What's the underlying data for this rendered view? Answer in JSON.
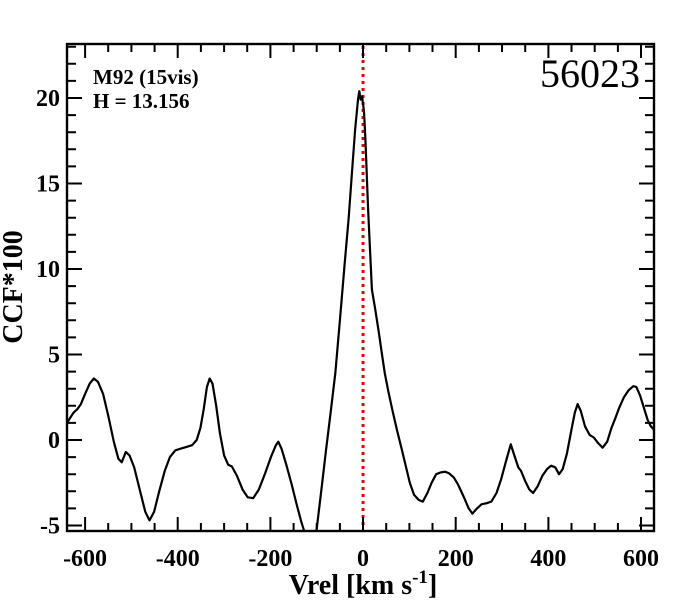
{
  "chart_data": {
    "type": "line",
    "id_label": "56023",
    "annotations": [
      "M92 (15vis)",
      "H = 13.156"
    ],
    "ylabel": "CCF*100",
    "xlabel_prefix": "Vrel [km s",
    "xlabel_sup": "-1",
    "xlabel_suffix": "]",
    "xlim": [
      -639,
      628
    ],
    "ylim": [
      -5.32,
      23.16
    ],
    "x_major_ticks": [
      -600,
      -400,
      -200,
      0,
      200,
      400,
      600
    ],
    "x_tick_labels": [
      "-600",
      "-400",
      "-200",
      "0",
      "200",
      "400",
      "600"
    ],
    "x_minor_step": 50,
    "y_major_ticks": [
      -5,
      0,
      5,
      10,
      15,
      20
    ],
    "y_tick_labels": [
      "-5",
      "0",
      "5",
      "10",
      "15",
      "20"
    ],
    "y_minor_step": 1,
    "marker_x": 0,
    "marker_color": "#ee0000",
    "line_color": "#000000",
    "grid": false,
    "legend": false,
    "series": [
      {
        "points": [
          [
            -639,
            1.0
          ],
          [
            -632,
            1.3
          ],
          [
            -625,
            1.6
          ],
          [
            -617,
            1.8
          ],
          [
            -609,
            2.1
          ],
          [
            -600,
            2.7
          ],
          [
            -590,
            3.3
          ],
          [
            -581,
            3.6
          ],
          [
            -572,
            3.4
          ],
          [
            -561,
            2.7
          ],
          [
            -549,
            1.3
          ],
          [
            -538,
            -0.1
          ],
          [
            -528,
            -1.1
          ],
          [
            -521,
            -1.3
          ],
          [
            -512,
            -0.7
          ],
          [
            -504,
            -0.9
          ],
          [
            -494,
            -1.6
          ],
          [
            -482,
            -2.9
          ],
          [
            -470,
            -4.2
          ],
          [
            -461,
            -4.7
          ],
          [
            -451,
            -4.2
          ],
          [
            -440,
            -3.0
          ],
          [
            -428,
            -1.8
          ],
          [
            -417,
            -1.0
          ],
          [
            -405,
            -0.6
          ],
          [
            -393,
            -0.5
          ],
          [
            -381,
            -0.4
          ],
          [
            -369,
            -0.3
          ],
          [
            -359,
            0.0
          ],
          [
            -351,
            0.7
          ],
          [
            -344,
            1.8
          ],
          [
            -337,
            3.1
          ],
          [
            -331,
            3.6
          ],
          [
            -325,
            3.3
          ],
          [
            -317,
            2.0
          ],
          [
            -309,
            0.4
          ],
          [
            -300,
            -0.9
          ],
          [
            -291,
            -1.45
          ],
          [
            -283,
            -1.55
          ],
          [
            -272,
            -2.1
          ],
          [
            -260,
            -2.9
          ],
          [
            -249,
            -3.35
          ],
          [
            -237,
            -3.4
          ],
          [
            -225,
            -2.9
          ],
          [
            -212,
            -2.0
          ],
          [
            -199,
            -1.0
          ],
          [
            -188,
            -0.3
          ],
          [
            -183,
            -0.1
          ],
          [
            -176,
            -0.5
          ],
          [
            -166,
            -1.4
          ],
          [
            -154,
            -2.6
          ],
          [
            -143,
            -3.8
          ],
          [
            -133,
            -4.8
          ],
          [
            -124,
            -5.6
          ],
          [
            -114,
            -6.2
          ],
          [
            -106,
            -6.3
          ],
          [
            -100,
            -5.2
          ],
          [
            -90,
            -2.9
          ],
          [
            -80,
            -0.6
          ],
          [
            -70,
            1.6
          ],
          [
            -60,
            3.9
          ],
          [
            -50,
            7.0
          ],
          [
            -40,
            10.2
          ],
          [
            -31,
            13.0
          ],
          [
            -24,
            15.6
          ],
          [
            -17,
            18.2
          ],
          [
            -11,
            19.9
          ],
          [
            -8,
            20.4
          ],
          [
            -5,
            19.9
          ],
          [
            -2,
            20.1
          ],
          [
            2,
            19.2
          ],
          [
            5,
            17.6
          ],
          [
            11,
            13.5
          ],
          [
            19,
            8.8
          ],
          [
            26,
            7.7
          ],
          [
            34,
            6.3
          ],
          [
            41,
            5.0
          ],
          [
            47,
            3.9
          ],
          [
            55,
            2.8
          ],
          [
            63,
            1.8
          ],
          [
            73,
            0.6
          ],
          [
            84,
            -0.6
          ],
          [
            93,
            -1.6
          ],
          [
            101,
            -2.5
          ],
          [
            110,
            -3.2
          ],
          [
            120,
            -3.5
          ],
          [
            129,
            -3.6
          ],
          [
            139,
            -3.1
          ],
          [
            148,
            -2.5
          ],
          [
            158,
            -2.0
          ],
          [
            167,
            -1.9
          ],
          [
            177,
            -1.85
          ],
          [
            186,
            -1.95
          ],
          [
            196,
            -2.2
          ],
          [
            205,
            -2.6
          ],
          [
            217,
            -3.3
          ],
          [
            228,
            -4.0
          ],
          [
            236,
            -4.3
          ],
          [
            246,
            -4.0
          ],
          [
            256,
            -3.75
          ],
          [
            266,
            -3.7
          ],
          [
            277,
            -3.6
          ],
          [
            288,
            -3.1
          ],
          [
            298,
            -2.3
          ],
          [
            308,
            -1.3
          ],
          [
            313,
            -0.8
          ],
          [
            319,
            -0.25
          ],
          [
            324,
            -0.7
          ],
          [
            335,
            -1.6
          ],
          [
            341,
            -1.8
          ],
          [
            350,
            -2.4
          ],
          [
            359,
            -2.9
          ],
          [
            367,
            -3.1
          ],
          [
            377,
            -2.7
          ],
          [
            387,
            -2.1
          ],
          [
            397,
            -1.7
          ],
          [
            406,
            -1.5
          ],
          [
            415,
            -1.6
          ],
          [
            423,
            -2.0
          ],
          [
            431,
            -1.7
          ],
          [
            440,
            -0.8
          ],
          [
            449,
            0.5
          ],
          [
            457,
            1.6
          ],
          [
            463,
            2.1
          ],
          [
            470,
            1.7
          ],
          [
            479,
            0.8
          ],
          [
            489,
            0.3
          ],
          [
            498,
            0.15
          ],
          [
            508,
            -0.2
          ],
          [
            517,
            -0.45
          ],
          [
            527,
            -0.1
          ],
          [
            536,
            0.7
          ],
          [
            545,
            1.3
          ],
          [
            553,
            1.9
          ],
          [
            563,
            2.5
          ],
          [
            573,
            2.9
          ],
          [
            583,
            3.15
          ],
          [
            590,
            3.1
          ],
          [
            598,
            2.6
          ],
          [
            606,
            1.9
          ],
          [
            614,
            1.2
          ],
          [
            621,
            0.8
          ],
          [
            628,
            0.6
          ]
        ]
      }
    ]
  }
}
